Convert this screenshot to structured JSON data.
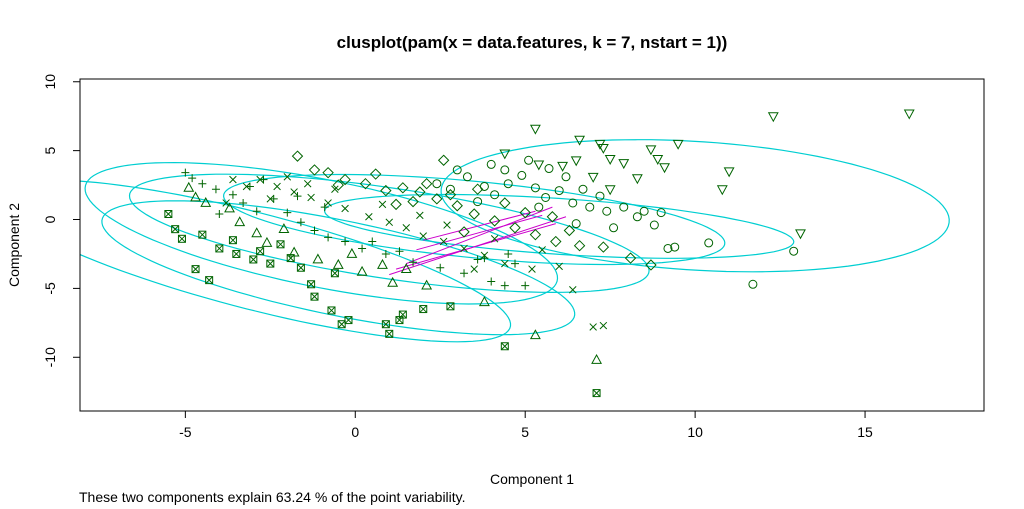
{
  "chart_data": {
    "type": "scatter",
    "title": "clusplot(pam(x = data.features, k = 7, nstart = 1))",
    "xlabel": "Component 1",
    "ylabel": "Component 2",
    "subtitle": "These two components explain 63.24 % of the point variability.",
    "xlim": [
      -8.1,
      18.5
    ],
    "ylim": [
      -13.9,
      10.2
    ],
    "x_ticks": [
      -5,
      0,
      5,
      10,
      15
    ],
    "y_ticks": [
      -10,
      -5,
      0,
      5,
      10
    ],
    "x_tick_labels": [
      "-5",
      "0",
      "5",
      "10",
      "15"
    ],
    "y_tick_labels": [
      "-10",
      "-5",
      "0",
      "5",
      "10"
    ],
    "grid": false,
    "point_color": "#006400",
    "ellipse_color": "#00CED1",
    "connector_color": "#CC00CC",
    "clusters": [
      {
        "id": 1,
        "symbol": "boxx",
        "center": [
          -3.0,
          -3.0
        ],
        "ellipse": {
          "a": 9.1,
          "b": 3.0,
          "angle_deg": -36
        }
      },
      {
        "id": 2,
        "symbol": "triangle",
        "center": [
          -0.5,
          -3.5
        ],
        "ellipse": {
          "a": 7.9,
          "b": 3.1,
          "angle_deg": -31
        }
      },
      {
        "id": 3,
        "symbol": "plus",
        "center": [
          -1.0,
          -1.0
        ],
        "ellipse": {
          "a": 7.9,
          "b": 3.5,
          "angle_deg": -32
        }
      },
      {
        "id": 4,
        "symbol": "x",
        "center": [
          1.0,
          -1.0
        ],
        "ellipse": {
          "a": 8.2,
          "b": 3.1,
          "angle_deg": -23
        }
      },
      {
        "id": 5,
        "symbol": "diamond",
        "center": [
          3.5,
          0.0
        ],
        "ellipse": {
          "a": 7.6,
          "b": 2.7,
          "angle_deg": -15
        }
      },
      {
        "id": 6,
        "symbol": "circle",
        "center": [
          6.0,
          -0.5
        ],
        "ellipse": {
          "a": 7.0,
          "b": 2.0,
          "angle_deg": -10
        }
      },
      {
        "id": 7,
        "symbol": "triangle-down",
        "center": [
          10.0,
          1.0
        ],
        "ellipse": {
          "a": 7.6,
          "b": 4.6,
          "angle_deg": -13
        }
      }
    ],
    "connectors": [
      [
        [
          1.0,
          -4.0
        ],
        [
          6.2,
          0.2
        ]
      ],
      [
        [
          1.5,
          -3.2
        ],
        [
          5.8,
          0.9
        ]
      ],
      [
        [
          1.8,
          -2.2
        ],
        [
          5.5,
          0.3
        ]
      ],
      [
        [
          2.0,
          -1.5
        ],
        [
          5.3,
          0.6
        ]
      ],
      [
        [
          1.2,
          -3.6
        ],
        [
          5.9,
          -0.3
        ]
      ]
    ],
    "points": [
      {
        "cluster": 1,
        "xy": [
          [
            -5.5,
            0.4
          ],
          [
            -5.3,
            -0.7
          ],
          [
            -5.1,
            -1.4
          ],
          [
            -4.7,
            -3.6
          ],
          [
            -4.0,
            -2.1
          ],
          [
            -3.6,
            -1.5
          ],
          [
            -2.8,
            -2.3
          ],
          [
            -2.5,
            -3.2
          ],
          [
            -1.9,
            -2.8
          ],
          [
            -1.3,
            -4.7
          ],
          [
            -1.2,
            -5.6
          ],
          [
            -0.7,
            -6.6
          ],
          [
            -0.2,
            -7.3
          ],
          [
            1.0,
            -8.3
          ],
          [
            1.3,
            -7.3
          ],
          [
            2.0,
            -6.5
          ],
          [
            2.8,
            -6.3
          ],
          [
            4.4,
            -9.2
          ],
          [
            7.1,
            -12.6
          ],
          [
            -4.3,
            -4.4
          ],
          [
            -3.5,
            -2.5
          ],
          [
            -2.2,
            -1.8
          ],
          [
            -1.6,
            -3.5
          ],
          [
            -0.6,
            -3.9
          ],
          [
            -0.4,
            -7.6
          ],
          [
            1.4,
            -6.9
          ],
          [
            0.9,
            -7.6
          ],
          [
            -3.0,
            -2.9
          ],
          [
            -4.5,
            -1.1
          ]
        ]
      },
      {
        "cluster": 2,
        "xy": [
          [
            -4.9,
            2.3
          ],
          [
            -4.7,
            1.6
          ],
          [
            -4.4,
            1.2
          ],
          [
            -3.7,
            0.8
          ],
          [
            -3.4,
            -0.2
          ],
          [
            -2.9,
            -1.0
          ],
          [
            -2.6,
            -1.7
          ],
          [
            -1.8,
            -2.4
          ],
          [
            -1.1,
            -2.9
          ],
          [
            -0.5,
            -3.3
          ],
          [
            0.2,
            -3.8
          ],
          [
            1.1,
            -4.6
          ],
          [
            2.1,
            -4.8
          ],
          [
            3.8,
            -6.0
          ],
          [
            5.3,
            -8.4
          ],
          [
            7.1,
            -10.2
          ],
          [
            -0.1,
            -2.5
          ],
          [
            0.8,
            -3.3
          ],
          [
            1.5,
            -3.6
          ],
          [
            -2.1,
            -0.7
          ]
        ]
      },
      {
        "cluster": 3,
        "xy": [
          [
            -5.0,
            3.4
          ],
          [
            -4.8,
            3.0
          ],
          [
            -4.5,
            2.6
          ],
          [
            -4.1,
            2.2
          ],
          [
            -3.6,
            1.8
          ],
          [
            -3.3,
            1.2
          ],
          [
            -2.9,
            0.6
          ],
          [
            -2.4,
            1.5
          ],
          [
            -2.0,
            0.5
          ],
          [
            -1.6,
            -0.2
          ],
          [
            -1.2,
            -0.8
          ],
          [
            -0.8,
            -1.3
          ],
          [
            -0.3,
            -1.6
          ],
          [
            0.2,
            -2.1
          ],
          [
            0.9,
            -2.5
          ],
          [
            1.7,
            -3.1
          ],
          [
            2.5,
            -3.5
          ],
          [
            3.2,
            -3.9
          ],
          [
            4.0,
            -4.5
          ],
          [
            4.5,
            -2.5
          ],
          [
            3.8,
            -2.8
          ],
          [
            4.4,
            -4.8
          ],
          [
            5.0,
            -4.8
          ],
          [
            -4.0,
            0.4
          ],
          [
            -3.1,
            2.4
          ],
          [
            -2.7,
            2.9
          ],
          [
            -1.7,
            1.7
          ],
          [
            -0.9,
            0.9
          ],
          [
            0.5,
            -1.6
          ],
          [
            1.3,
            -2.3
          ],
          [
            3.6,
            -2.9
          ],
          [
            4.7,
            -3.2
          ]
        ]
      },
      {
        "cluster": 4,
        "xy": [
          [
            -3.6,
            2.9
          ],
          [
            -3.2,
            2.4
          ],
          [
            -2.8,
            2.9
          ],
          [
            -2.3,
            2.4
          ],
          [
            -1.8,
            2.0
          ],
          [
            -1.3,
            1.6
          ],
          [
            -0.8,
            1.2
          ],
          [
            -0.3,
            0.8
          ],
          [
            0.4,
            0.2
          ],
          [
            1.0,
            -0.2
          ],
          [
            1.5,
            -0.6
          ],
          [
            2.0,
            -1.2
          ],
          [
            2.6,
            -1.6
          ],
          [
            3.2,
            -2.1
          ],
          [
            3.8,
            -2.6
          ],
          [
            4.4,
            -3.2
          ],
          [
            5.2,
            -3.6
          ],
          [
            6.4,
            -5.1
          ],
          [
            7.3,
            -7.7
          ],
          [
            7.0,
            -7.8
          ],
          [
            -2.0,
            3.1
          ],
          [
            -1.4,
            2.6
          ],
          [
            -0.6,
            2.2
          ],
          [
            0.8,
            1.1
          ],
          [
            1.9,
            0.3
          ],
          [
            2.7,
            -0.4
          ],
          [
            4.1,
            -1.4
          ],
          [
            3.5,
            -3.6
          ],
          [
            5.5,
            -2.2
          ],
          [
            6.0,
            -3.4
          ],
          [
            -3.8,
            1.2
          ],
          [
            -2.5,
            1.5
          ]
        ]
      },
      {
        "cluster": 5,
        "xy": [
          [
            -1.7,
            4.6
          ],
          [
            -1.2,
            3.6
          ],
          [
            -0.8,
            3.4
          ],
          [
            -0.3,
            2.9
          ],
          [
            0.3,
            2.6
          ],
          [
            0.9,
            2.1
          ],
          [
            1.4,
            2.3
          ],
          [
            1.9,
            2.0
          ],
          [
            2.4,
            1.5
          ],
          [
            3.0,
            1.0
          ],
          [
            3.5,
            0.4
          ],
          [
            4.1,
            -0.1
          ],
          [
            4.7,
            -0.6
          ],
          [
            5.3,
            -1.1
          ],
          [
            5.9,
            -1.6
          ],
          [
            6.6,
            -1.9
          ],
          [
            7.3,
            -2.0
          ],
          [
            8.1,
            -2.8
          ],
          [
            8.7,
            -3.3
          ],
          [
            -0.5,
            2.5
          ],
          [
            0.6,
            3.3
          ],
          [
            1.2,
            1.1
          ],
          [
            2.1,
            2.6
          ],
          [
            2.8,
            1.8
          ],
          [
            3.6,
            2.2
          ],
          [
            4.4,
            1.2
          ],
          [
            5.0,
            0.5
          ],
          [
            5.8,
            0.2
          ],
          [
            6.3,
            -0.8
          ],
          [
            3.2,
            -0.9
          ],
          [
            1.7,
            1.3
          ],
          [
            2.6,
            4.3
          ]
        ]
      },
      {
        "cluster": 6,
        "xy": [
          [
            2.4,
            2.6
          ],
          [
            2.8,
            2.2
          ],
          [
            3.3,
            3.1
          ],
          [
            3.8,
            2.4
          ],
          [
            4.1,
            1.8
          ],
          [
            4.5,
            2.6
          ],
          [
            4.9,
            3.2
          ],
          [
            5.3,
            2.3
          ],
          [
            5.6,
            1.6
          ],
          [
            6.0,
            2.1
          ],
          [
            6.4,
            1.2
          ],
          [
            6.9,
            0.9
          ],
          [
            7.4,
            0.6
          ],
          [
            7.9,
            0.9
          ],
          [
            8.3,
            0.2
          ],
          [
            8.8,
            -0.4
          ],
          [
            9.4,
            -2.0
          ],
          [
            10.4,
            -1.7
          ],
          [
            11.7,
            -4.7
          ],
          [
            12.9,
            -2.3
          ],
          [
            4.0,
            4.0
          ],
          [
            4.4,
            3.6
          ],
          [
            5.1,
            4.3
          ],
          [
            5.7,
            3.7
          ],
          [
            6.2,
            3.1
          ],
          [
            6.7,
            2.2
          ],
          [
            7.2,
            1.7
          ],
          [
            3.0,
            3.6
          ],
          [
            3.6,
            1.3
          ],
          [
            6.5,
            -0.3
          ],
          [
            7.6,
            -0.6
          ],
          [
            8.5,
            0.6
          ],
          [
            9.0,
            0.5
          ],
          [
            9.2,
            -2.1
          ],
          [
            5.4,
            0.9
          ]
        ]
      },
      {
        "cluster": 7,
        "xy": [
          [
            5.3,
            6.6
          ],
          [
            4.4,
            4.8
          ],
          [
            5.4,
            4.0
          ],
          [
            6.1,
            3.9
          ],
          [
            6.5,
            4.3
          ],
          [
            7.2,
            5.5
          ],
          [
            7.5,
            4.4
          ],
          [
            7.9,
            4.1
          ],
          [
            8.3,
            3.0
          ],
          [
            7.5,
            2.2
          ],
          [
            8.9,
            4.4
          ],
          [
            9.1,
            3.8
          ],
          [
            9.5,
            5.5
          ],
          [
            11.0,
            3.5
          ],
          [
            10.8,
            2.2
          ],
          [
            12.3,
            7.5
          ],
          [
            13.1,
            -1.0
          ],
          [
            16.3,
            7.7
          ],
          [
            6.6,
            5.8
          ],
          [
            7.3,
            5.2
          ],
          [
            8.7,
            5.1
          ],
          [
            7.0,
            3.1
          ]
        ]
      }
    ]
  }
}
